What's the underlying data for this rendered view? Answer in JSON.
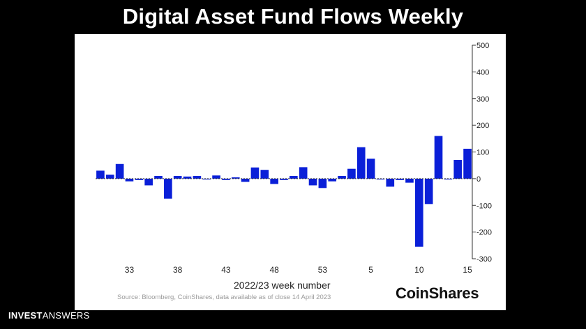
{
  "slide_title": "Digital Asset Fund Flows Weekly",
  "footer_brand": {
    "part1": "INVEST",
    "part2": "ANSWERS"
  },
  "source_note": "Source: Bloomberg, CoinShares, data available as of close 14 April 2023",
  "logo_text": "CoinShares",
  "colors": {
    "bar": "#0a1fd8",
    "background": "#ffffff",
    "axis": "#333333"
  },
  "chart_data": {
    "type": "bar",
    "title": "",
    "xlabel": "2022/23 week number",
    "ylabel": "",
    "ylim": [
      -300,
      500
    ],
    "yticks": [
      500,
      400,
      300,
      200,
      100,
      0,
      -100,
      -200,
      -300
    ],
    "x_tick_labels": [
      {
        "index": 3,
        "label": "33"
      },
      {
        "index": 8,
        "label": "38"
      },
      {
        "index": 13,
        "label": "43"
      },
      {
        "index": 18,
        "label": "48"
      },
      {
        "index": 23,
        "label": "53"
      },
      {
        "index": 28,
        "label": "5"
      },
      {
        "index": 33,
        "label": "10"
      },
      {
        "index": 38,
        "label": "15"
      }
    ],
    "series": [
      {
        "values": [
          30,
          15,
          55,
          -10,
          -5,
          -25,
          10,
          -75,
          10,
          8,
          10,
          -3,
          12,
          -5,
          5,
          -12,
          42,
          33,
          -20,
          -5,
          10,
          43,
          -25,
          -35,
          -10,
          10,
          37,
          118,
          75,
          -3,
          -30,
          -5,
          -15,
          -255,
          -95,
          160,
          -3,
          70,
          112
        ]
      }
    ]
  }
}
